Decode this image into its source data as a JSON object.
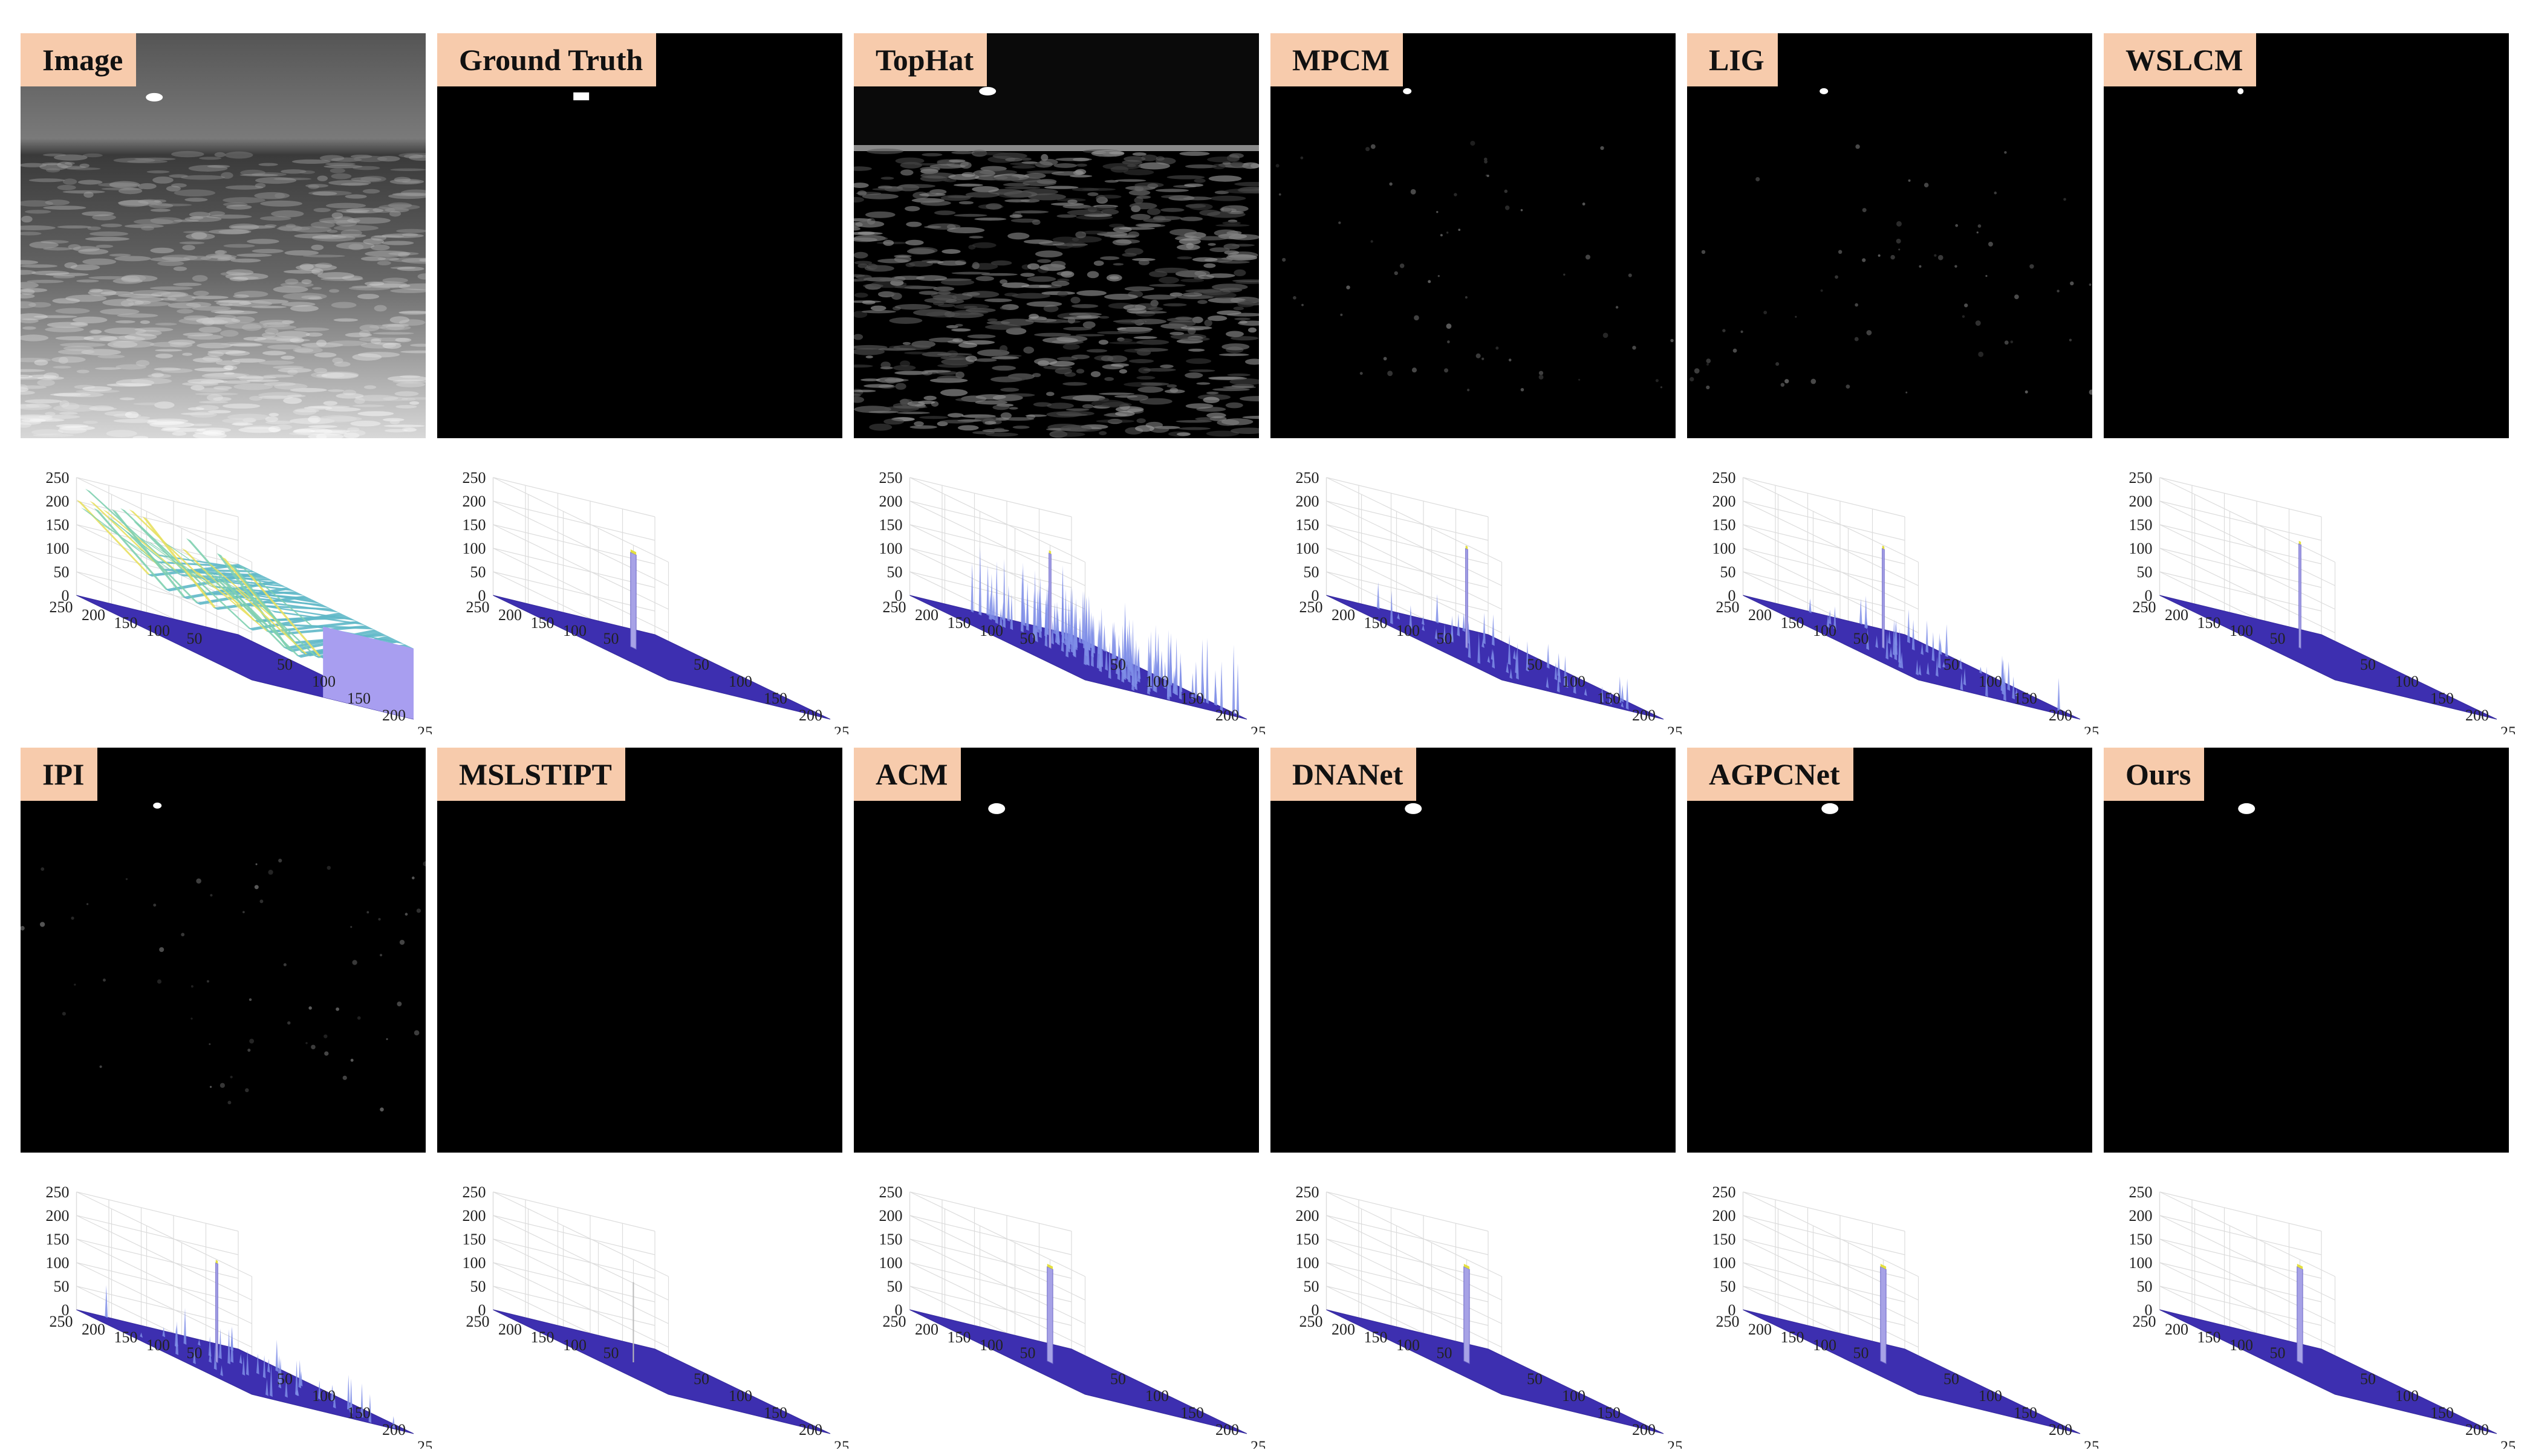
{
  "figure": {
    "axis": {
      "z_ticks": [
        "0",
        "50",
        "100",
        "150",
        "200",
        "250"
      ],
      "left_ticks": [
        "250",
        "200",
        "150",
        "100",
        "50"
      ],
      "right_ticks": [
        "50",
        "100",
        "150",
        "200",
        "250"
      ]
    },
    "panels": [
      {
        "label": "Image",
        "kind": "source",
        "target": [
          0.36,
          0.27
        ]
      },
      {
        "label": "Ground Truth",
        "kind": "mask",
        "target": [
          0.36,
          0.27
        ]
      },
      {
        "label": "TopHat",
        "kind": "tophat",
        "target": [
          0.36,
          0.27
        ]
      },
      {
        "label": "MPCM",
        "kind": "sparse",
        "target": [
          0.36,
          0.27
        ]
      },
      {
        "label": "LIG",
        "kind": "sparse",
        "target": [
          0.36,
          0.27
        ]
      },
      {
        "label": "WSLCM",
        "kind": "dot",
        "target": [
          0.36,
          0.27
        ]
      },
      {
        "label": "IPI",
        "kind": "sparse",
        "target": [
          0.36,
          0.27
        ]
      },
      {
        "label": "MSLSTIPT",
        "kind": "empty",
        "target": [
          0.36,
          0.27
        ]
      },
      {
        "label": "ACM",
        "kind": "blob",
        "target": [
          0.36,
          0.27
        ]
      },
      {
        "label": "DNANet",
        "kind": "blob",
        "target": [
          0.36,
          0.27
        ]
      },
      {
        "label": "AGPCNet",
        "kind": "blob",
        "target": [
          0.36,
          0.27
        ]
      },
      {
        "label": "Ours",
        "kind": "blob",
        "target": [
          0.36,
          0.27
        ]
      }
    ]
  }
}
